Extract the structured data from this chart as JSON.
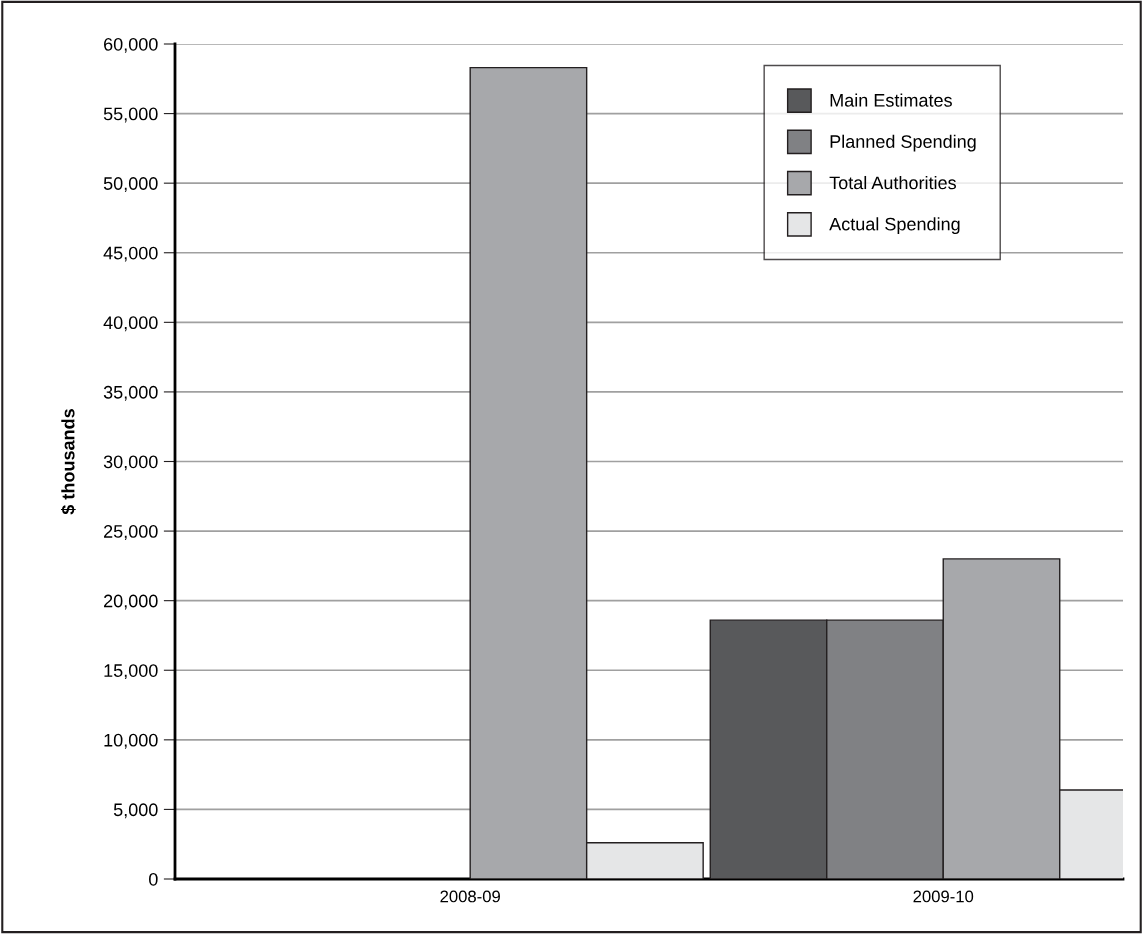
{
  "chart_data": {
    "type": "bar",
    "ylabel": "$ thousands",
    "categories": [
      "2008-09",
      "2009-10"
    ],
    "series": [
      {
        "name": "Main Estimates",
        "color": "#58595b",
        "values": [
          null,
          18600
        ]
      },
      {
        "name": "Planned Spending",
        "color": "#808184",
        "values": [
          null,
          18600
        ]
      },
      {
        "name": "Total Authorities",
        "color": "#a7a8ab",
        "values": [
          58300,
          23000
        ]
      },
      {
        "name": "Actual Spending",
        "color": "#e5e6e7",
        "values": [
          2600,
          6400
        ]
      }
    ],
    "ylim": [
      0,
      60000
    ],
    "yticks": [
      {
        "value": 0,
        "label": "0"
      },
      {
        "value": 5000,
        "label": "5,000"
      },
      {
        "value": 10000,
        "label": "10,000"
      },
      {
        "value": 15000,
        "label": "15,000"
      },
      {
        "value": 20000,
        "label": "20,000"
      },
      {
        "value": 25000,
        "label": "25,000"
      },
      {
        "value": 30000,
        "label": "30,000"
      },
      {
        "value": 35000,
        "label": "35,000"
      },
      {
        "value": 40000,
        "label": "40,000"
      },
      {
        "value": 45000,
        "label": "45,000"
      },
      {
        "value": 50000,
        "label": "50,000"
      },
      {
        "value": 55000,
        "label": "55,000"
      },
      {
        "value": 60000,
        "label": "60,000"
      }
    ],
    "grid": "y",
    "legend": "top right"
  }
}
